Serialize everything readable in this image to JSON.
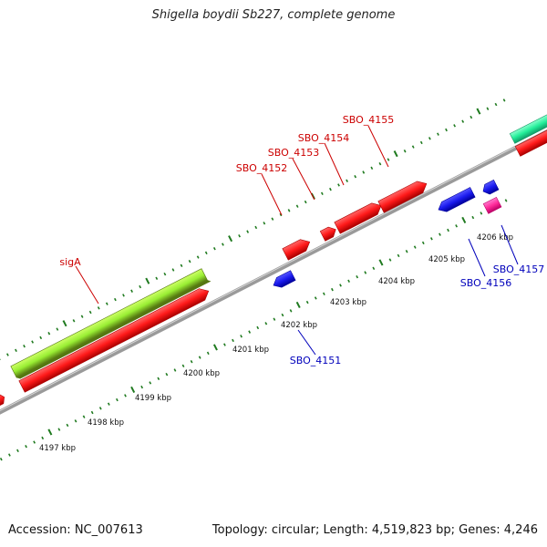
{
  "title": "Shigella boydii Sb227, complete genome",
  "footer": {
    "accession": "Accession: NC_007613",
    "summary": "Topology: circular; Length: 4,519,823 bp; Genes: 4,246"
  },
  "colors": {
    "backbone": "#8a8a8a",
    "ruler": "#1f7a1f",
    "cds_forward": "#ff1a1a",
    "cds_reverse": "#1a1aee",
    "label_forward": "#cc0000",
    "label_reverse": "#0000bb",
    "rrna": "#99ee33",
    "misc_teal": "#22ee99",
    "misc_pink": "#ff2a99",
    "tick_label": "#111111"
  },
  "ruler": {
    "unit": "kbp",
    "ticks": [
      "4197 kbp",
      "4198 kbp",
      "4199 kbp",
      "4200 kbp",
      "4201 kbp",
      "4202 kbp",
      "4203 kbp",
      "4204 kbp",
      "4205 kbp",
      "4206 kbp"
    ]
  },
  "features": {
    "forward": [
      {
        "label": "sigA",
        "type": "CDS"
      },
      {
        "label": "SBO_4152",
        "type": "CDS"
      },
      {
        "label": "SBO_4153",
        "type": "CDS"
      },
      {
        "label": "SBO_4154",
        "type": "CDS"
      },
      {
        "label": "SBO_4155",
        "type": "CDS"
      }
    ],
    "reverse": [
      {
        "label": "SBO_4151",
        "type": "CDS"
      },
      {
        "label": "SBO_4156",
        "type": "CDS"
      },
      {
        "label": "SBO_4157",
        "type": "CDS"
      }
    ]
  }
}
